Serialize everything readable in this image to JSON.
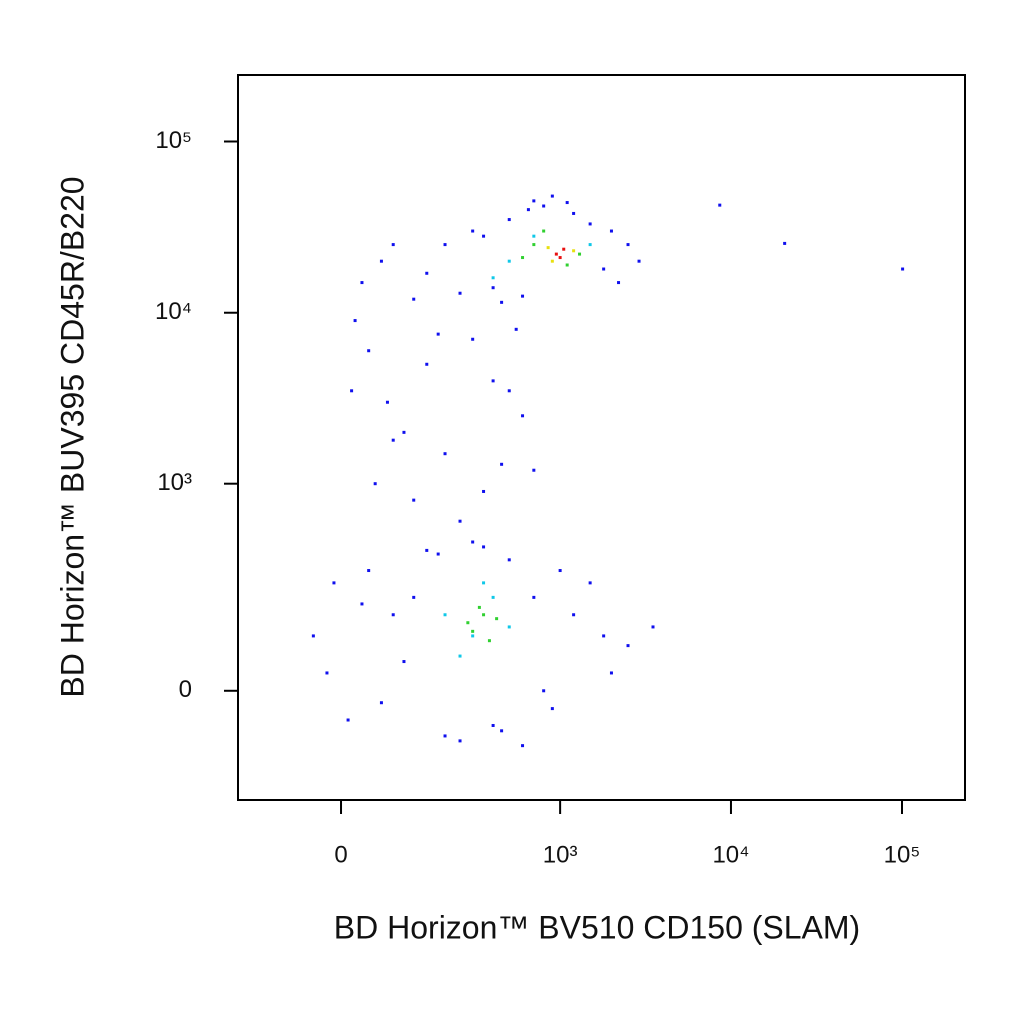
{
  "chart_data": {
    "type": "scatter",
    "x_label": "BD Horizon™ BV510 CD150 (SLAM)",
    "y_label": "BD Horizon™ BUV395 CD45R/B220",
    "xscale": "asinh",
    "yscale": "asinh",
    "x_cofactor": 105,
    "y_cofactor": 124,
    "xlim": [
      -197,
      233500
    ],
    "ylim": [
      -255,
      244500
    ],
    "xticks": [
      0,
      {
        "value": 1000,
        "label": "10³"
      },
      {
        "value": 10000,
        "label": "10⁴"
      },
      {
        "value": 100000,
        "label": "10⁵"
      }
    ],
    "yticks": [
      0,
      {
        "value": 1000,
        "label": "10³"
      },
      {
        "value": 10000,
        "label": "10⁴"
      },
      {
        "value": 100000,
        "label": "10⁵"
      }
    ],
    "series": [
      {
        "color": "#1010ee",
        "x": [
          30,
          60,
          120,
          200,
          300,
          400,
          500,
          650,
          800,
          1200,
          1500,
          2000,
          2500,
          2900,
          150,
          250,
          350,
          700,
          900,
          1100,
          1800,
          2200,
          80,
          450,
          600,
          20,
          40,
          70,
          100,
          150,
          200,
          300,
          400,
          500,
          600,
          700,
          50,
          120,
          250,
          350,
          15,
          80,
          180,
          450,
          550,
          8600,
          20600,
          100800,
          -40,
          -10,
          10,
          40,
          80,
          100,
          150,
          200,
          300,
          400,
          500,
          700,
          900,
          1200,
          1800,
          2500,
          3500,
          -20,
          60,
          120,
          250,
          600,
          1000,
          1500,
          350,
          180,
          800,
          30,
          2000,
          450
        ],
        "y": [
          15000,
          20000,
          12000,
          25000,
          30000,
          14000,
          35000,
          40000,
          42000,
          38000,
          33000,
          30000,
          25000,
          20000,
          17000,
          13000,
          28000,
          45000,
          48000,
          44000,
          18000,
          15000,
          25000,
          11500,
          12500,
          9000,
          6000,
          3000,
          2000,
          5000,
          1500,
          7000,
          4000,
          3500,
          2500,
          1200,
          1000,
          800,
          600,
          900,
          3500,
          1800,
          7500,
          1300,
          8000,
          42500,
          25400,
          18000,
          100,
          250,
          -50,
          300,
          150,
          50,
          400,
          -80,
          450,
          -60,
          350,
          200,
          -30,
          150,
          100,
          80,
          120,
          30,
          -20,
          200,
          -90,
          -100,
          300,
          250,
          420,
          380,
          0,
          180,
          30,
          -70
        ]
      },
      {
        "color": "#10c8e8",
        "x": [
          200,
          300,
          400,
          250,
          500,
          350,
          500,
          700,
          1500,
          400
        ],
        "y": [
          150,
          100,
          200,
          60,
          120,
          250,
          20000,
          28000,
          25000,
          16000
        ]
      },
      {
        "color": "#30d030",
        "x": [
          280,
          330,
          380,
          420,
          300,
          350,
          700,
          1300,
          800,
          1100,
          600
        ],
        "y": [
          130,
          170,
          90,
          140,
          110,
          150,
          25000,
          22000,
          30000,
          19000,
          21000
        ]
      },
      {
        "color": "#e8e010",
        "x": [
          850,
          1200,
          900
        ],
        "y": [
          24000,
          23000,
          20000
        ]
      },
      {
        "color": "#e81010",
        "x": [
          950,
          1050,
          1000
        ],
        "y": [
          22000,
          23500,
          21000
        ]
      }
    ]
  }
}
